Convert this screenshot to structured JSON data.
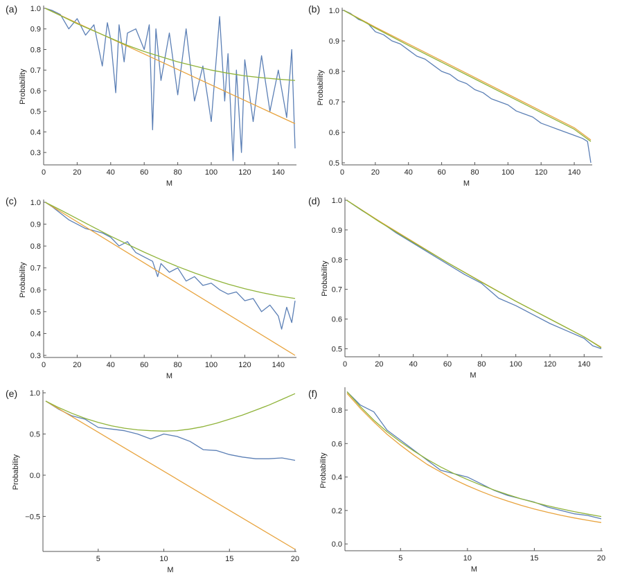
{
  "chart_data": [
    {
      "type": "line",
      "panel": "(a)",
      "xlabel": "M",
      "ylabel": "Probability",
      "xlim": [
        0,
        150
      ],
      "ylim": [
        0.25,
        1.0
      ],
      "xticks": [
        0,
        20,
        40,
        60,
        80,
        100,
        120,
        140
      ],
      "yticks": [
        0.3,
        0.4,
        0.5,
        0.6,
        0.7,
        0.8,
        0.9,
        1.0
      ],
      "ytick_labels": [
        "0.3",
        "0.4",
        "0.5",
        "0.6",
        "0.7",
        "0.8",
        "0.9",
        "1.0"
      ],
      "grid": false,
      "legend": "none",
      "series": [
        {
          "color": "#5b7fb5",
          "x": [
            1,
            5,
            10,
            15,
            20,
            25,
            30,
            35,
            38,
            40,
            43,
            45,
            48,
            50,
            55,
            60,
            63,
            65,
            67,
            70,
            75,
            80,
            85,
            90,
            95,
            100,
            105,
            108,
            110,
            113,
            115,
            118,
            120,
            125,
            130,
            135,
            140,
            145,
            148,
            150
          ],
          "y": [
            1.0,
            0.99,
            0.97,
            0.9,
            0.95,
            0.87,
            0.92,
            0.72,
            0.93,
            0.85,
            0.59,
            0.92,
            0.74,
            0.88,
            0.9,
            0.8,
            0.92,
            0.41,
            0.9,
            0.65,
            0.88,
            0.58,
            0.9,
            0.55,
            0.72,
            0.45,
            0.96,
            0.55,
            0.78,
            0.26,
            0.7,
            0.3,
            0.75,
            0.45,
            0.77,
            0.5,
            0.7,
            0.47,
            0.8,
            0.32
          ]
        },
        {
          "color": "#e8a33d",
          "x": [
            1,
            150
          ],
          "y": [
            1.0,
            0.44
          ]
        },
        {
          "color": "#8fb339",
          "x": [
            1,
            10,
            20,
            30,
            40,
            50,
            60,
            70,
            80,
            90,
            100,
            110,
            120,
            130,
            140,
            150
          ],
          "y": [
            1.0,
            0.965,
            0.925,
            0.89,
            0.855,
            0.82,
            0.79,
            0.765,
            0.74,
            0.72,
            0.7,
            0.685,
            0.672,
            0.663,
            0.656,
            0.65
          ]
        }
      ]
    },
    {
      "type": "line",
      "panel": "(b)",
      "xlabel": "M",
      "ylabel": "Probability",
      "xlim": [
        0,
        150
      ],
      "ylim": [
        0.5,
        1.0
      ],
      "xticks": [
        0,
        20,
        40,
        60,
        80,
        100,
        120,
        140
      ],
      "yticks": [
        0.5,
        0.6,
        0.7,
        0.8,
        0.9,
        1.0
      ],
      "ytick_labels": [
        "0.5",
        "0.6",
        "0.7",
        "0.8",
        "0.9",
        "1.0"
      ],
      "grid": false,
      "legend": "none",
      "series": [
        {
          "color": "#5b7fb5",
          "x": [
            1,
            5,
            10,
            15,
            20,
            25,
            30,
            35,
            40,
            45,
            50,
            55,
            60,
            65,
            70,
            75,
            80,
            85,
            90,
            95,
            100,
            105,
            110,
            115,
            120,
            125,
            130,
            135,
            140,
            145,
            148,
            150
          ],
          "y": [
            1.0,
            0.99,
            0.97,
            0.96,
            0.93,
            0.92,
            0.9,
            0.89,
            0.87,
            0.85,
            0.84,
            0.82,
            0.8,
            0.79,
            0.77,
            0.76,
            0.74,
            0.73,
            0.71,
            0.7,
            0.69,
            0.67,
            0.66,
            0.65,
            0.63,
            0.62,
            0.61,
            0.6,
            0.59,
            0.58,
            0.57,
            0.5
          ]
        },
        {
          "color": "#e8a33d",
          "x": [
            1,
            20,
            40,
            60,
            80,
            100,
            120,
            140,
            150
          ],
          "y": [
            1.0,
            0.945,
            0.89,
            0.835,
            0.78,
            0.725,
            0.67,
            0.615,
            0.575
          ]
        },
        {
          "color": "#8fb339",
          "x": [
            1,
            20,
            40,
            60,
            80,
            100,
            120,
            140,
            150
          ],
          "y": [
            1.0,
            0.942,
            0.885,
            0.83,
            0.775,
            0.72,
            0.665,
            0.61,
            0.57
          ]
        }
      ]
    },
    {
      "type": "line",
      "panel": "(c)",
      "xlabel": "M",
      "ylabel": "Probability",
      "xlim": [
        0,
        150
      ],
      "ylim": [
        0.3,
        1.0
      ],
      "xticks": [
        0,
        20,
        40,
        60,
        80,
        100,
        120,
        140
      ],
      "yticks": [
        0.3,
        0.4,
        0.5,
        0.6,
        0.7,
        0.8,
        0.9,
        1.0
      ],
      "ytick_labels": [
        "0.3",
        "0.4",
        "0.5",
        "0.6",
        "0.7",
        "0.8",
        "0.9",
        "1.0"
      ],
      "grid": false,
      "legend": "none",
      "series": [
        {
          "color": "#5b7fb5",
          "x": [
            1,
            5,
            10,
            15,
            20,
            25,
            30,
            35,
            40,
            45,
            50,
            55,
            60,
            65,
            68,
            70,
            75,
            80,
            85,
            90,
            95,
            100,
            105,
            110,
            115,
            120,
            125,
            130,
            135,
            140,
            142,
            145,
            148,
            150
          ],
          "y": [
            1.0,
            0.98,
            0.95,
            0.92,
            0.9,
            0.88,
            0.87,
            0.86,
            0.84,
            0.8,
            0.82,
            0.77,
            0.75,
            0.73,
            0.66,
            0.72,
            0.68,
            0.7,
            0.64,
            0.66,
            0.62,
            0.63,
            0.6,
            0.58,
            0.59,
            0.55,
            0.56,
            0.5,
            0.53,
            0.48,
            0.42,
            0.52,
            0.45,
            0.55
          ]
        },
        {
          "color": "#e8a33d",
          "x": [
            1,
            150
          ],
          "y": [
            1.0,
            0.3
          ]
        },
        {
          "color": "#8fb339",
          "x": [
            1,
            10,
            20,
            30,
            40,
            50,
            60,
            70,
            80,
            90,
            100,
            110,
            120,
            130,
            140,
            150
          ],
          "y": [
            1.0,
            0.965,
            0.925,
            0.885,
            0.845,
            0.808,
            0.772,
            0.738,
            0.706,
            0.677,
            0.65,
            0.626,
            0.605,
            0.587,
            0.572,
            0.56
          ]
        }
      ]
    },
    {
      "type": "line",
      "panel": "(d)",
      "xlabel": "M",
      "ylabel": "Probability",
      "xlim": [
        0,
        150
      ],
      "ylim": [
        0.48,
        1.0
      ],
      "xticks": [
        0,
        20,
        40,
        60,
        80,
        100,
        120,
        140
      ],
      "yticks": [
        0.5,
        0.6,
        0.7,
        0.8,
        0.9,
        1.0
      ],
      "ytick_labels": [
        "0.5",
        "0.6",
        "0.7",
        "0.8",
        "0.9",
        "1.0"
      ],
      "grid": false,
      "legend": "none",
      "series": [
        {
          "color": "#5b7fb5",
          "x": [
            1,
            10,
            20,
            30,
            40,
            50,
            60,
            70,
            80,
            90,
            100,
            110,
            120,
            130,
            140,
            145,
            150
          ],
          "y": [
            1.0,
            0.965,
            0.93,
            0.89,
            0.855,
            0.82,
            0.785,
            0.75,
            0.72,
            0.67,
            0.645,
            0.615,
            0.585,
            0.56,
            0.535,
            0.51,
            0.5
          ]
        },
        {
          "color": "#e8a33d",
          "x": [
            1,
            20,
            40,
            60,
            80,
            100,
            120,
            140,
            150
          ],
          "y": [
            1.0,
            0.93,
            0.86,
            0.79,
            0.725,
            0.66,
            0.6,
            0.54,
            0.505
          ]
        },
        {
          "color": "#8fb339",
          "x": [
            1,
            20,
            40,
            60,
            80,
            100,
            120,
            140,
            150
          ],
          "y": [
            1.0,
            0.928,
            0.858,
            0.79,
            0.724,
            0.66,
            0.6,
            0.54,
            0.503
          ]
        }
      ]
    },
    {
      "type": "line",
      "panel": "(e)",
      "xlabel": "M",
      "ylabel": "Probability",
      "xlim": [
        1,
        20
      ],
      "ylim": [
        -0.9,
        1.0
      ],
      "xticks": [
        5,
        10,
        15,
        20
      ],
      "yticks": [
        -0.5,
        0.0,
        0.5,
        1.0
      ],
      "ytick_labels": [
        "−0.5",
        "0.0",
        "0.5",
        "1.0"
      ],
      "grid": false,
      "legend": "none",
      "series": [
        {
          "color": "#5b7fb5",
          "x": [
            1,
            2,
            3,
            4,
            5,
            6,
            7,
            8,
            9,
            10,
            11,
            12,
            13,
            14,
            15,
            16,
            17,
            18,
            19,
            20
          ],
          "y": [
            0.9,
            0.8,
            0.72,
            0.68,
            0.58,
            0.56,
            0.54,
            0.5,
            0.44,
            0.5,
            0.47,
            0.41,
            0.31,
            0.3,
            0.25,
            0.22,
            0.2,
            0.2,
            0.21,
            0.18
          ]
        },
        {
          "color": "#e8a33d",
          "x": [
            1,
            20
          ],
          "y": [
            0.9,
            -0.9
          ]
        },
        {
          "color": "#8fb339",
          "x": [
            1,
            2,
            3,
            4,
            5,
            6,
            7,
            8,
            9,
            10,
            11,
            12,
            13,
            14,
            15,
            16,
            17,
            18,
            19,
            20
          ],
          "y": [
            0.9,
            0.82,
            0.75,
            0.69,
            0.64,
            0.6,
            0.57,
            0.55,
            0.54,
            0.535,
            0.54,
            0.56,
            0.59,
            0.63,
            0.68,
            0.73,
            0.79,
            0.85,
            0.92,
            0.99
          ]
        }
      ]
    },
    {
      "type": "line",
      "panel": "(f)",
      "xlabel": "M",
      "ylabel": "Probability",
      "xlim": [
        1,
        20
      ],
      "ylim": [
        -0.02,
        0.92
      ],
      "xticks": [
        5,
        10,
        15,
        20
      ],
      "yticks": [
        0.0,
        0.2,
        0.4,
        0.6,
        0.8
      ],
      "ytick_labels": [
        "0.0",
        "0.2",
        "0.4",
        "0.6",
        "0.8"
      ],
      "grid": false,
      "legend": "none",
      "series": [
        {
          "color": "#5b7fb5",
          "x": [
            1,
            2,
            3,
            4,
            5,
            6,
            7,
            8,
            9,
            10,
            11,
            12,
            13,
            14,
            15,
            16,
            17,
            18,
            19,
            20
          ],
          "y": [
            0.91,
            0.83,
            0.79,
            0.68,
            0.62,
            0.56,
            0.5,
            0.44,
            0.42,
            0.4,
            0.36,
            0.32,
            0.29,
            0.27,
            0.25,
            0.22,
            0.2,
            0.18,
            0.17,
            0.15
          ]
        },
        {
          "color": "#e8a33d",
          "x": [
            1,
            2,
            3,
            4,
            5,
            6,
            7,
            8,
            9,
            10,
            11,
            12,
            13,
            14,
            15,
            16,
            17,
            18,
            19,
            20
          ],
          "y": [
            0.9,
            0.81,
            0.73,
            0.655,
            0.59,
            0.53,
            0.475,
            0.43,
            0.385,
            0.348,
            0.314,
            0.283,
            0.256,
            0.231,
            0.209,
            0.189,
            0.171,
            0.155,
            0.141,
            0.128
          ]
        },
        {
          "color": "#8fb339",
          "x": [
            1,
            2,
            3,
            4,
            5,
            6,
            7,
            8,
            9,
            10,
            11,
            12,
            13,
            14,
            15,
            16,
            17,
            18,
            19,
            20
          ],
          "y": [
            0.91,
            0.82,
            0.74,
            0.67,
            0.61,
            0.555,
            0.505,
            0.46,
            0.42,
            0.385,
            0.352,
            0.322,
            0.295,
            0.27,
            0.248,
            0.228,
            0.21,
            0.193,
            0.178,
            0.164
          ]
        }
      ]
    }
  ]
}
